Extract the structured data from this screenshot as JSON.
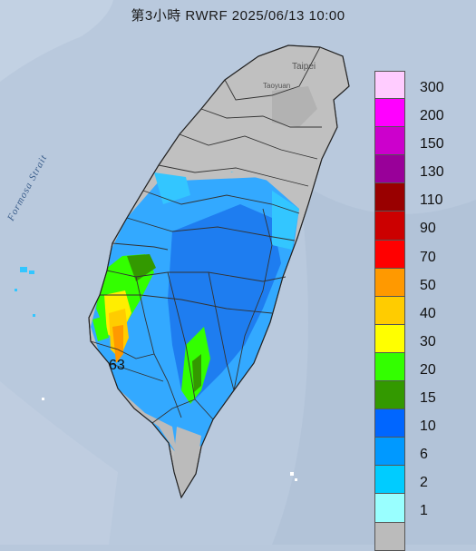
{
  "map": {
    "title": "第3小時  RWRF 2025/06/13 10:00",
    "strait_label": "Formosa Strait",
    "city_labels": [
      "Taipei",
      "Taoyuan"
    ],
    "max_value_label": "63"
  },
  "legend": {
    "items": [
      {
        "label": "300",
        "color": "#ffccff"
      },
      {
        "label": "200",
        "color": "#ff00ff"
      },
      {
        "label": "150",
        "color": "#cc00cc"
      },
      {
        "label": "130",
        "color": "#990099"
      },
      {
        "label": "110",
        "color": "#990000"
      },
      {
        "label": "90",
        "color": "#cc0000"
      },
      {
        "label": "70",
        "color": "#ff0000"
      },
      {
        "label": "50",
        "color": "#ff9900"
      },
      {
        "label": "40",
        "color": "#ffcc00"
      },
      {
        "label": "30",
        "color": "#ffff00"
      },
      {
        "label": "20",
        "color": "#33ff00"
      },
      {
        "label": "15",
        "color": "#339900"
      },
      {
        "label": "10",
        "color": "#0066ff"
      },
      {
        "label": "6",
        "color": "#0099ff"
      },
      {
        "label": "2",
        "color": "#00ccff"
      },
      {
        "label": "1",
        "color": "#99ffff"
      },
      {
        "label": "",
        "color": "#bbbbbb"
      }
    ]
  }
}
